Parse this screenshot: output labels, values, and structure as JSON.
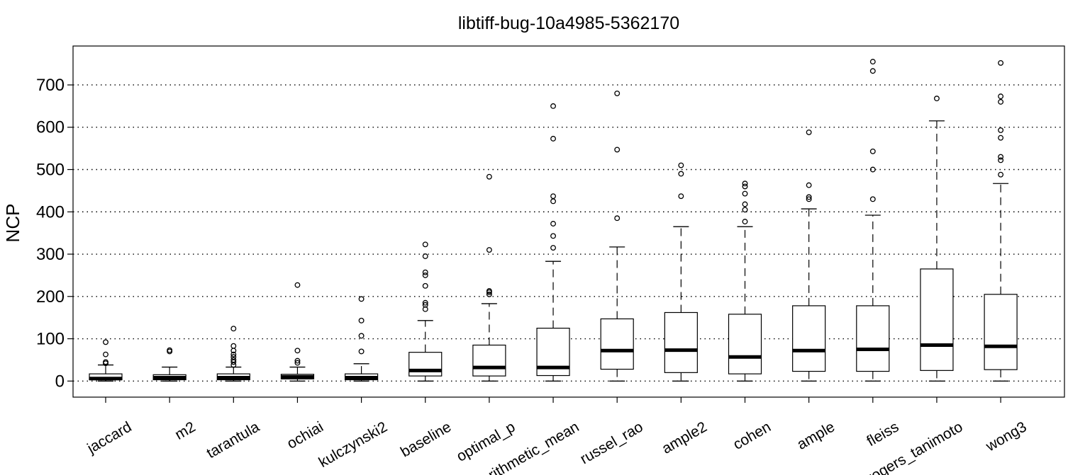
{
  "chart_data": {
    "type": "boxplot",
    "title": "libtiff-bug-10a4985-5362170",
    "xlabel": "",
    "ylabel": "NCP",
    "ylim": [
      -38,
      792
    ],
    "yticks": [
      0,
      100,
      200,
      300,
      400,
      500,
      600,
      700
    ],
    "ytick_labels": [
      "0",
      "100",
      "200",
      "300",
      "400",
      "500",
      "600",
      "700"
    ],
    "grid": "horizontal dotted",
    "categories": [
      "jaccard",
      "m2",
      "tarantula",
      "ochiai",
      "kulczynski2",
      "baseline",
      "optimal_p",
      "arithmetic_mean",
      "russel_rao",
      "ample2",
      "cohen",
      "ample",
      "fleiss",
      "rogers_tanimoto",
      "wong3"
    ],
    "boxes": [
      {
        "min": 0,
        "q1": 3,
        "median": 6,
        "q3": 17,
        "max": 38,
        "outliers": [
          42,
          45,
          63,
          92
        ]
      },
      {
        "min": 0,
        "q1": 3,
        "median": 8,
        "q3": 15,
        "max": 33,
        "outliers": [
          70,
          73
        ]
      },
      {
        "min": 0,
        "q1": 3,
        "median": 8,
        "q3": 17,
        "max": 33,
        "outliers": [
          38,
          45,
          50,
          57,
          63,
          72,
          83,
          124
        ]
      },
      {
        "min": 0,
        "q1": 5,
        "median": 10,
        "q3": 16,
        "max": 33,
        "outliers": [
          43,
          48,
          72,
          227
        ]
      },
      {
        "min": 0,
        "q1": 3,
        "median": 8,
        "q3": 17,
        "max": 41,
        "outliers": [
          70,
          107,
          143,
          194
        ]
      },
      {
        "min": 0,
        "q1": 12,
        "median": 25,
        "q3": 68,
        "max": 143,
        "outliers": [
          170,
          180,
          185,
          225,
          250,
          257,
          295,
          323
        ]
      },
      {
        "min": 0,
        "q1": 12,
        "median": 32,
        "q3": 85,
        "max": 183,
        "outliers": [
          205,
          210,
          213,
          310,
          483
        ]
      },
      {
        "min": 0,
        "q1": 13,
        "median": 32,
        "q3": 125,
        "max": 283,
        "outliers": [
          315,
          343,
          372,
          425,
          437,
          573,
          650
        ]
      },
      {
        "min": 0,
        "q1": 28,
        "median": 72,
        "q3": 147,
        "max": 317,
        "outliers": [
          385,
          547,
          680
        ]
      },
      {
        "min": 0,
        "q1": 20,
        "median": 73,
        "q3": 162,
        "max": 365,
        "outliers": [
          437,
          490,
          510
        ]
      },
      {
        "min": 0,
        "q1": 17,
        "median": 57,
        "q3": 158,
        "max": 365,
        "outliers": [
          377,
          405,
          418,
          443,
          460,
          467
        ]
      },
      {
        "min": 0,
        "q1": 23,
        "median": 72,
        "q3": 178,
        "max": 407,
        "outliers": [
          430,
          435,
          463,
          588
        ]
      },
      {
        "min": 0,
        "q1": 23,
        "median": 75,
        "q3": 178,
        "max": 392,
        "outliers": [
          430,
          500,
          543,
          733,
          755
        ]
      },
      {
        "min": 0,
        "q1": 25,
        "median": 85,
        "q3": 265,
        "max": 615,
        "outliers": [
          668
        ]
      },
      {
        "min": 0,
        "q1": 27,
        "median": 82,
        "q3": 205,
        "max": 467,
        "outliers": [
          488,
          522,
          530,
          575,
          593,
          660,
          673,
          752
        ]
      }
    ]
  }
}
